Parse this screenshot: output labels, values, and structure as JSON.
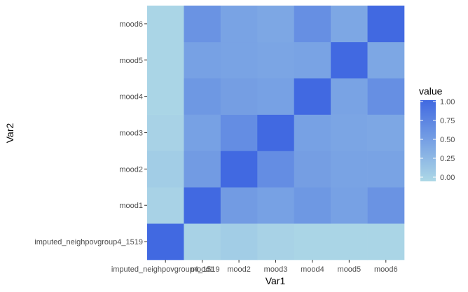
{
  "chart_data": {
    "type": "heatmap",
    "x_categories": [
      "imputed_neighpovgroup4_1519",
      "mood1",
      "mood2",
      "mood3",
      "mood4",
      "mood5",
      "mood6"
    ],
    "y_categories": [
      "imputed_neighpovgroup4_1519",
      "mood1",
      "mood2",
      "mood3",
      "mood4",
      "mood5",
      "mood6"
    ],
    "values": [
      [
        1.0,
        0.05,
        0.1,
        0.05,
        0.03,
        0.03,
        0.03
      ],
      [
        0.05,
        1.0,
        0.55,
        0.5,
        0.58,
        0.5,
        0.62
      ],
      [
        0.1,
        0.55,
        1.0,
        0.68,
        0.52,
        0.48,
        0.48
      ],
      [
        0.05,
        0.5,
        0.68,
        1.0,
        0.5,
        0.46,
        0.44
      ],
      [
        0.03,
        0.58,
        0.52,
        0.5,
        1.0,
        0.48,
        0.66
      ],
      [
        0.03,
        0.5,
        0.48,
        0.46,
        0.48,
        1.0,
        0.44
      ],
      [
        0.03,
        0.62,
        0.48,
        0.44,
        0.66,
        0.44,
        1.0
      ]
    ],
    "xlabel": "Var1",
    "ylabel": "Var2",
    "legend": {
      "title": "value",
      "ticks": [
        1.0,
        0.75,
        0.5,
        0.25,
        0.0
      ],
      "tick_labels": [
        "1.00",
        "0.75",
        "0.50",
        "0.25",
        "0.00"
      ],
      "position": "right"
    },
    "color_low": "#add8e6",
    "color_high": "#4169e1",
    "panel_background": "#ebebeb",
    "grid": true
  }
}
